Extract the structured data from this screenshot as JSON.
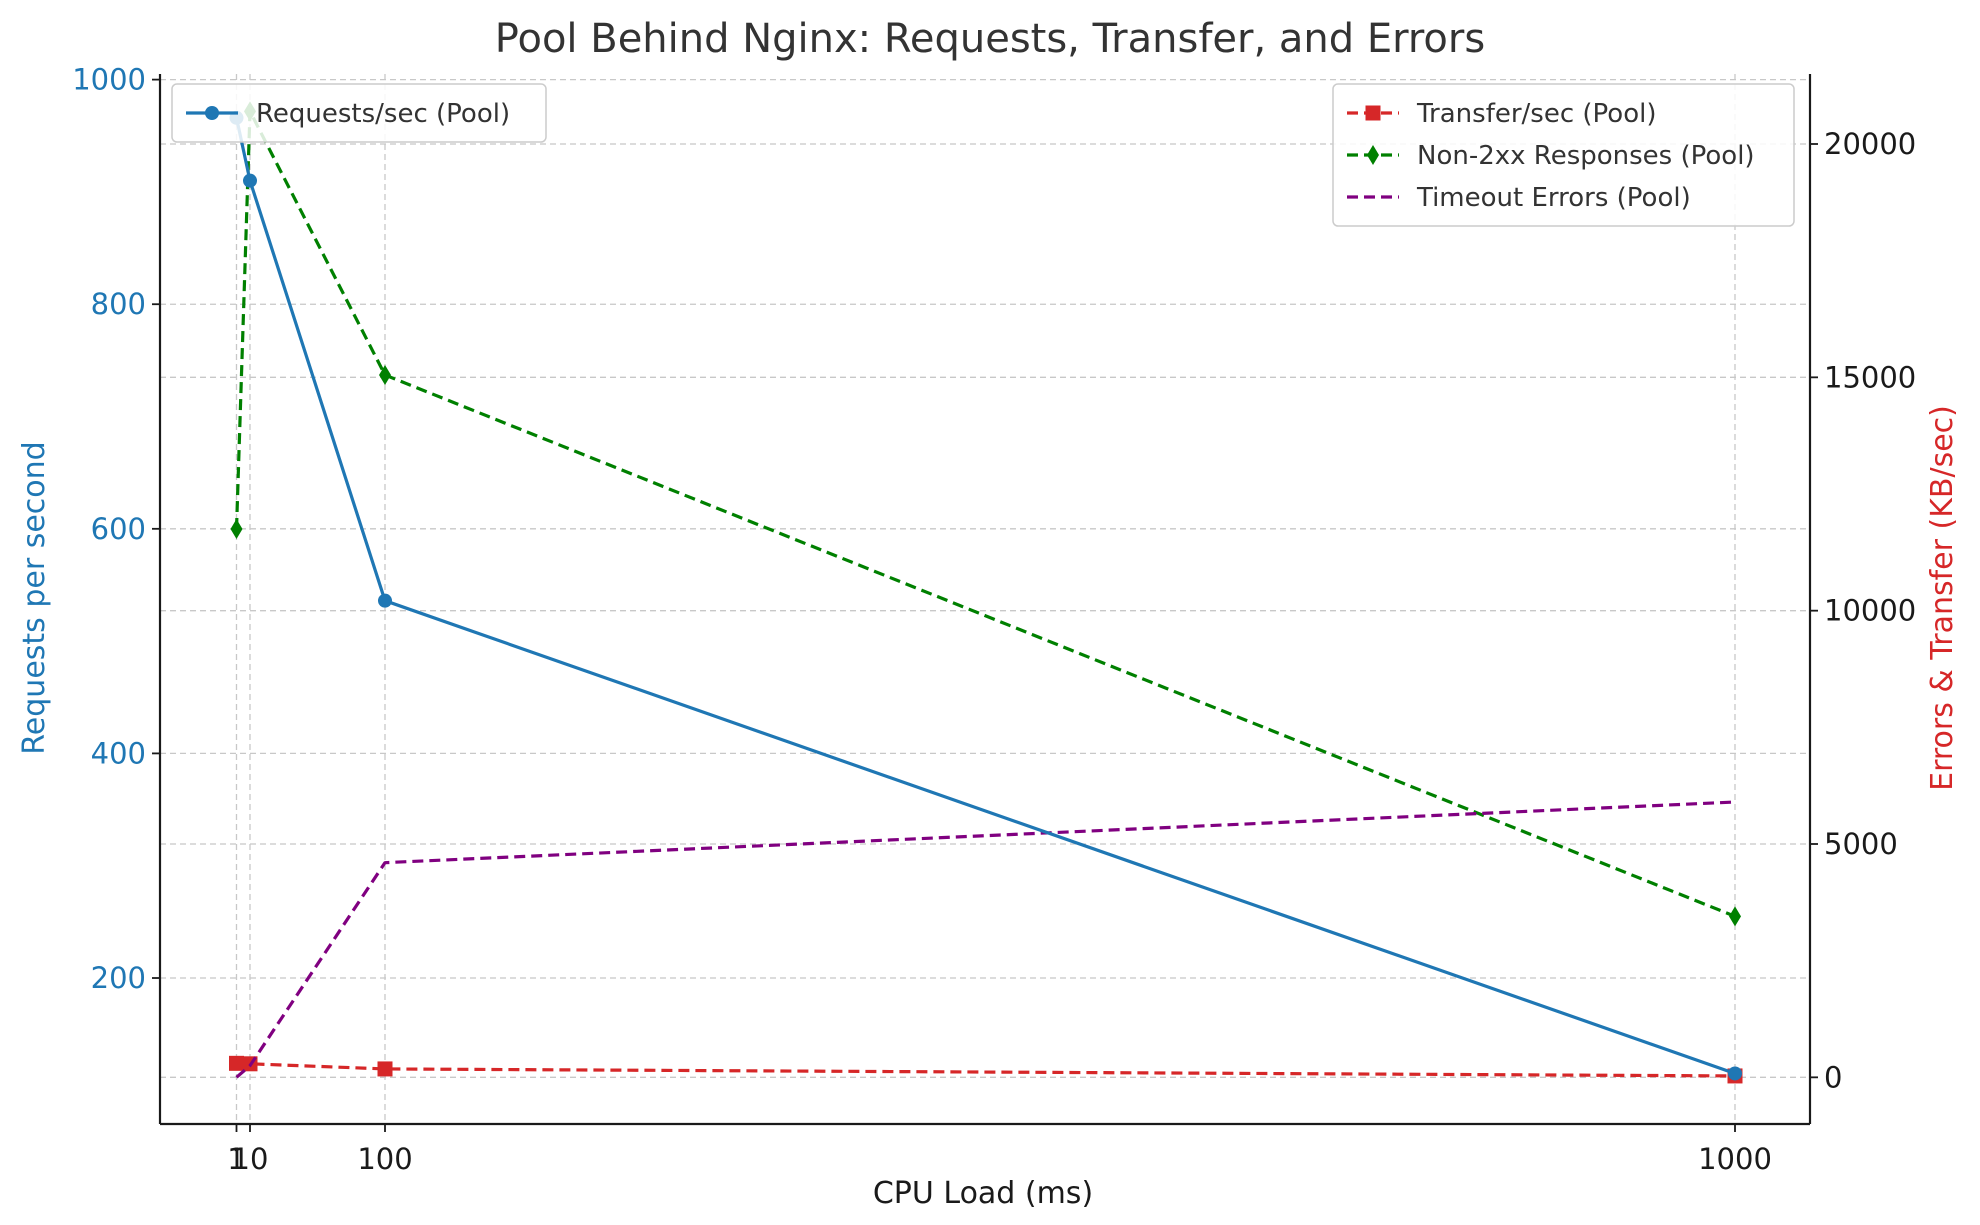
{
  "chart_data": {
    "type": "line",
    "title": "Pool Behind Nginx: Requests, Transfer, and Errors",
    "xlabel": "CPU Load (ms)",
    "ylabel_left": "Requests per second",
    "ylabel_right": "Errors & Transfer (KB/sec)",
    "x": [
      1,
      10,
      100,
      1000
    ],
    "x_ticks": [
      "1",
      "10",
      "100",
      "1000"
    ],
    "xlim": [
      -50,
      1050
    ],
    "ylim_left": [
      70,
      1005
    ],
    "ylim_right": [
      -1000,
      21500
    ],
    "y_ticks_left": [
      200,
      400,
      600,
      800,
      1000
    ],
    "y_ticks_right": [
      0,
      5000,
      10000,
      15000,
      20000
    ],
    "grid": true,
    "legend_left_placement": "top-left",
    "legend_right_placement": "top-right",
    "colors": {
      "left_axis": "#1f77b4",
      "right_axis": "#d62728",
      "title": "#333333"
    },
    "series": [
      {
        "name": "Requests/sec (Pool)",
        "axis": "left",
        "color": "#1f77b4",
        "style": "solid",
        "marker": "circle",
        "values": [
          966,
          910,
          536,
          115
        ]
      },
      {
        "name": "Transfer/sec (Pool)",
        "axis": "right",
        "color": "#d62728",
        "style": "dashed",
        "marker": "square",
        "values": [
          300,
          290,
          180,
          30
        ]
      },
      {
        "name": "Non-2xx Responses (Pool)",
        "axis": "right",
        "color": "#008000",
        "style": "dashed",
        "marker": "diamond",
        "values": [
          11750,
          20700,
          15050,
          3450
        ]
      },
      {
        "name": "Timeout Errors (Pool)",
        "axis": "right",
        "color": "#800080",
        "style": "dashed",
        "marker": "none",
        "values": [
          0,
          250,
          4600,
          5900
        ]
      }
    ]
  }
}
